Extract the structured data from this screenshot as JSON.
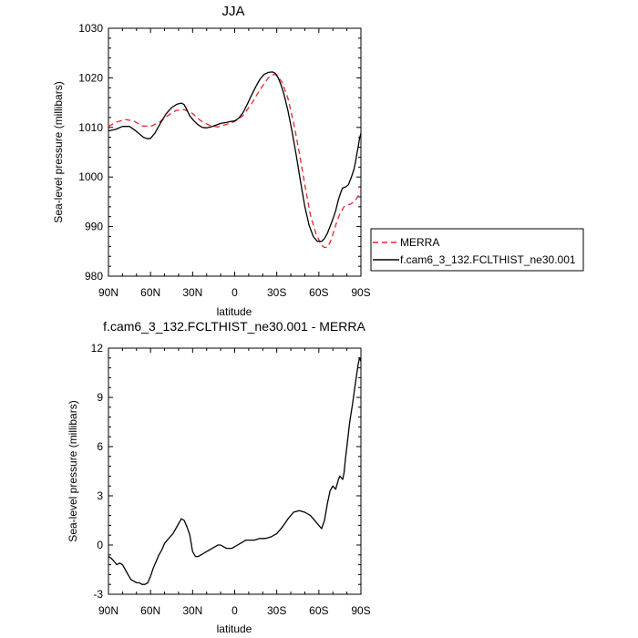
{
  "chart_data": [
    {
      "type": "line",
      "title": "JJA",
      "xlabel": "latitude",
      "ylabel": "Sea-level pressure (millibars)",
      "xlim": [
        -90,
        90
      ],
      "ylim": [
        980,
        1030
      ],
      "xticks": [
        -90,
        -60,
        -30,
        0,
        30,
        60,
        90
      ],
      "xtick_labels": [
        "90N",
        "60N",
        "30N",
        "0",
        "30S",
        "60S",
        "90S"
      ],
      "yticks": [
        980,
        990,
        1000,
        1010,
        1020,
        1030
      ],
      "ytick_labels": [
        "980",
        "990",
        "1000",
        "1010",
        "1020",
        "1030"
      ],
      "legend_placement": "right",
      "series": [
        {
          "name": "MERRA",
          "color": "#e8262d",
          "dash": "dashed",
          "x": [
            -90,
            -85,
            -78,
            -72,
            -66,
            -60,
            -54,
            -48,
            -42,
            -36,
            -30,
            -24,
            -18,
            -12,
            -6,
            0,
            6,
            12,
            18,
            24,
            28,
            30,
            34,
            38,
            42,
            46,
            50,
            54,
            58,
            62,
            64,
            66,
            68,
            70,
            72,
            75,
            78,
            80,
            83,
            86,
            89,
            90
          ],
          "y": [
            1010.2,
            1011.0,
            1011.6,
            1011.3,
            1010.3,
            1010.2,
            1011.0,
            1012.3,
            1013.4,
            1013.6,
            1012.8,
            1011.3,
            1010.4,
            1010.1,
            1010.6,
            1011.2,
            1012.4,
            1014.8,
            1017.6,
            1020.0,
            1020.7,
            1020.6,
            1019.0,
            1015.8,
            1011.0,
            1005.0,
            998.5,
            992.3,
            988.5,
            986.2,
            985.8,
            985.8,
            986.8,
            988.4,
            990.3,
            992.6,
            994.0,
            994.3,
            994.6,
            995.2,
            996.7,
            997.3
          ]
        },
        {
          "name": "f.cam6_3_132.FCLTHIST_ne30.001",
          "color": "#000000",
          "dash": "solid",
          "x": [
            -90,
            -85,
            -80,
            -75,
            -70,
            -65,
            -62,
            -60,
            -57,
            -53,
            -49,
            -45,
            -41,
            -38,
            -36,
            -34,
            -32,
            -29,
            -26,
            -23,
            -20,
            -17,
            -14,
            -10,
            -6,
            -3,
            0,
            3,
            6,
            9,
            12,
            15,
            18,
            21,
            24,
            27,
            29,
            31,
            33,
            35,
            38,
            41,
            44,
            47,
            50,
            53,
            56,
            59,
            62,
            64,
            66,
            68,
            70,
            72,
            74,
            76,
            77,
            79,
            81,
            83,
            85,
            86,
            87,
            88,
            89,
            90
          ],
          "y": [
            1009.3,
            1009.6,
            1010.2,
            1010.2,
            1009.2,
            1008.0,
            1007.7,
            1007.8,
            1008.8,
            1010.8,
            1012.7,
            1014.0,
            1014.7,
            1014.9,
            1014.6,
            1013.5,
            1012.3,
            1011.3,
            1010.5,
            1010.0,
            1009.9,
            1010.1,
            1010.4,
            1010.8,
            1011.0,
            1011.2,
            1011.3,
            1011.9,
            1013.0,
            1014.7,
            1016.5,
            1018.2,
            1019.7,
            1020.7,
            1021.1,
            1021.2,
            1020.9,
            1020.0,
            1018.6,
            1016.8,
            1013.3,
            1009.0,
            1004.2,
            999.0,
            994.1,
            990.3,
            988.0,
            987.0,
            987.0,
            987.6,
            988.6,
            990.0,
            991.5,
            993.2,
            995.5,
            997.2,
            997.8,
            998.0,
            998.4,
            999.8,
            1001.5,
            1002.8,
            1004.5,
            1006.0,
            1007.8,
            1008.8
          ]
        }
      ]
    },
    {
      "type": "line",
      "title": "f.cam6_3_132.FCLTHIST_ne30.001 - MERRA",
      "xlabel": "latitude",
      "ylabel": "Sea-level pressure (millibars)",
      "xlim": [
        -90,
        90
      ],
      "ylim": [
        -3,
        12
      ],
      "xticks": [
        -90,
        -60,
        -30,
        0,
        30,
        60,
        90
      ],
      "xtick_labels": [
        "90N",
        "60N",
        "30N",
        "0",
        "30S",
        "60S",
        "90S"
      ],
      "yticks": [
        -3,
        0,
        3,
        6,
        9,
        12
      ],
      "ytick_labels": [
        "-3",
        "0",
        "3",
        "6",
        "9",
        "12"
      ],
      "series": [
        {
          "color": "#000000",
          "dash": "solid",
          "x": [
            -90,
            -88,
            -86,
            -84,
            -82,
            -80,
            -78,
            -76,
            -74,
            -72,
            -70,
            -68,
            -66,
            -64,
            -62,
            -60,
            -58,
            -56,
            -54,
            -52,
            -50,
            -48,
            -46,
            -44,
            -42,
            -40,
            -38,
            -36,
            -34,
            -32,
            -30,
            -28,
            -26,
            -24,
            -22,
            -20,
            -18,
            -16,
            -14,
            -12,
            -10,
            -8,
            -6,
            -4,
            -2,
            0,
            2,
            4,
            6,
            8,
            10,
            14,
            18,
            22,
            26,
            30,
            34,
            38,
            42,
            46,
            50,
            54,
            58,
            60,
            62,
            64,
            66,
            68,
            70,
            72,
            73,
            74,
            75,
            76,
            77,
            78,
            79,
            80,
            82,
            84,
            86,
            88,
            89,
            90
          ],
          "y": [
            -0.7,
            -0.8,
            -1.0,
            -1.2,
            -1.1,
            -1.2,
            -1.5,
            -1.8,
            -2.1,
            -2.2,
            -2.3,
            -2.3,
            -2.4,
            -2.4,
            -2.3,
            -1.9,
            -1.4,
            -1.0,
            -0.6,
            -0.3,
            0.1,
            0.3,
            0.5,
            0.7,
            1.0,
            1.3,
            1.6,
            1.5,
            1.1,
            0.6,
            -0.4,
            -0.7,
            -0.7,
            -0.6,
            -0.5,
            -0.4,
            -0.3,
            -0.2,
            -0.1,
            0.0,
            0.0,
            -0.1,
            -0.2,
            -0.2,
            -0.2,
            -0.1,
            0.0,
            0.1,
            0.2,
            0.3,
            0.3,
            0.3,
            0.4,
            0.4,
            0.5,
            0.7,
            1.1,
            1.6,
            2.0,
            2.1,
            2.0,
            1.8,
            1.4,
            1.2,
            1.0,
            1.5,
            2.5,
            3.3,
            3.6,
            3.4,
            3.7,
            4.0,
            4.2,
            4.1,
            4.0,
            4.4,
            5.3,
            6.0,
            7.5,
            8.6,
            9.8,
            11.0,
            11.4,
            11.2
          ]
        }
      ]
    }
  ]
}
